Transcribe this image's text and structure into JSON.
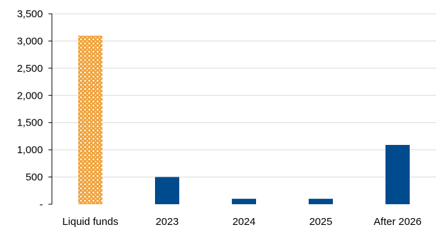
{
  "chart_data": {
    "type": "bar",
    "title": "",
    "xlabel": "",
    "ylabel": "",
    "categories": [
      "Liquid funds",
      "2023",
      "2024",
      "2025",
      "After 2026"
    ],
    "values": [
      3100,
      500,
      100,
      100,
      1090
    ],
    "ylim": [
      0,
      3500
    ],
    "yticks": [
      0,
      500,
      1000,
      1500,
      2000,
      2500,
      3000,
      3500
    ],
    "ytick_labels": [
      "-",
      "500",
      "1,000",
      "1,500",
      "2,000",
      "2,500",
      "3,000",
      "3,500"
    ],
    "grid": true,
    "legend": "none",
    "bar_styles": [
      "pattern",
      "solid",
      "solid",
      "solid",
      "solid"
    ],
    "colors": {
      "solid": "#004b8d",
      "pattern_fg": "#f0a33c",
      "pattern_bg": "#ffffff",
      "grid": "#d9d9d9",
      "axis": "#000000"
    }
  }
}
